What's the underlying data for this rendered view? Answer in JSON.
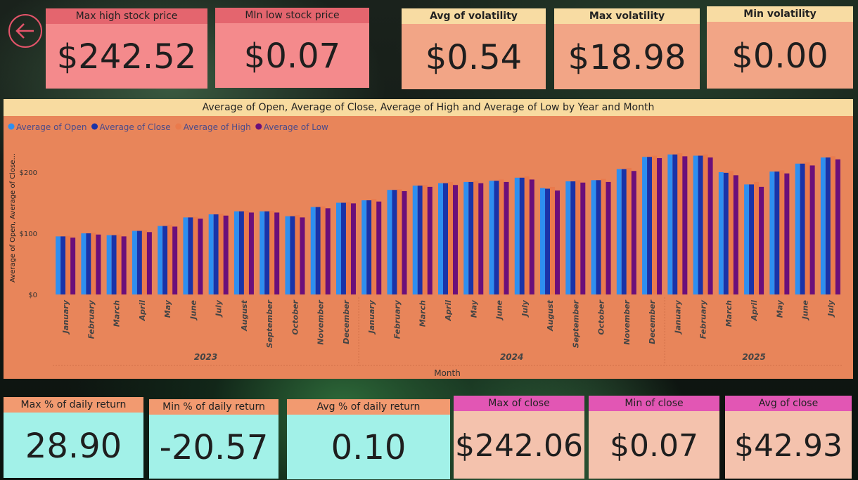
{
  "top_cards": [
    {
      "label": "Max high stock price",
      "value": "$242.52",
      "hdr_color": "#e4656e",
      "body_color": "#f48a8c"
    },
    {
      "label": "MIn low stock price",
      "value": "$0.07",
      "hdr_color": "#e4656e",
      "body_color": "#f48a8c"
    },
    {
      "label": "Avg of volatility",
      "value": "$0.54",
      "hdr_color": "#f8dca3",
      "body_color": "#f2a586"
    },
    {
      "label": "Max volatility",
      "value": "$18.98",
      "hdr_color": "#f8dca3",
      "body_color": "#f2a586"
    },
    {
      "label": "Min volatility",
      "value": "$0.00",
      "hdr_color": "#f8dca3",
      "body_color": "#f2a586"
    }
  ],
  "bottom_cards": [
    {
      "label": "Max % of daily return",
      "value": "28.90",
      "hdr_color": "#f29a70",
      "body_color": "#a2f1e8"
    },
    {
      "label": "Min % of daily return",
      "value": "-20.57",
      "hdr_color": "#f29a70",
      "body_color": "#a2f1e8"
    },
    {
      "label": "Avg % of daily return",
      "value": "0.10",
      "hdr_color": "#f29a70",
      "body_color": "#a2f1e8"
    },
    {
      "label": "Max of close",
      "value": "$242.06",
      "hdr_color": "#e256b4",
      "body_color": "#f4c2ad"
    },
    {
      "label": "Min of close",
      "value": "$0.07",
      "hdr_color": "#e256b4",
      "body_color": "#f4c2ad"
    },
    {
      "label": "Avg of close",
      "value": "$42.93",
      "hdr_color": "#e256b4",
      "body_color": "#f4c2ad"
    }
  ],
  "back_button": {
    "icon": "arrow-left-icon",
    "color": "#e4546a"
  },
  "chart_data": {
    "type": "bar",
    "title": "Average of Open, Average of Close, Average of High and Average of Low by Year and Month",
    "xlabel": "Month",
    "ylabel": "Average of Open, Average of Close...",
    "ylim": [
      0,
      250
    ],
    "yticks": [
      "$0",
      "$100",
      "$200"
    ],
    "ytick_values": [
      0,
      100,
      200
    ],
    "legend_position": "top-left",
    "grid": false,
    "categories": [
      "January",
      "February",
      "March",
      "April",
      "May",
      "June",
      "July",
      "August",
      "September",
      "October",
      "November",
      "December",
      "January",
      "February",
      "March",
      "April",
      "May",
      "June",
      "July",
      "August",
      "September",
      "October",
      "November",
      "December",
      "January",
      "February",
      "March",
      "April",
      "May",
      "June",
      "July"
    ],
    "groups": [
      {
        "label": "2023",
        "count": 12
      },
      {
        "label": "2024",
        "count": 12
      },
      {
        "label": "2025",
        "count": 7
      }
    ],
    "series": [
      {
        "name": "Average of Open",
        "color": "#2e8ff0",
        "values": [
          95,
          100,
          97,
          104,
          112,
          126,
          131,
          136,
          136,
          128,
          143,
          150,
          154,
          171,
          178,
          182,
          184,
          186,
          191,
          174,
          185,
          187,
          205,
          225,
          229,
          227,
          200,
          180,
          201,
          214,
          224
        ]
      },
      {
        "name": "Average of Close",
        "color": "#1a33a8",
        "values": [
          95,
          100,
          97,
          104,
          112,
          126,
          131,
          136,
          136,
          128,
          143,
          150,
          154,
          171,
          178,
          182,
          184,
          186,
          191,
          173,
          185,
          187,
          205,
          225,
          229,
          227,
          199,
          180,
          201,
          214,
          224
        ]
      },
      {
        "name": "Average of High",
        "color": "#ea7a4c",
        "values": [
          96,
          101,
          98,
          105,
          114,
          127,
          132,
          137,
          137,
          130,
          144,
          151,
          156,
          172,
          179,
          184,
          186,
          188,
          193,
          176,
          187,
          189,
          207,
          227,
          231,
          229,
          202,
          184,
          203,
          216,
          226
        ]
      },
      {
        "name": "Average of Low",
        "color": "#6b0f7a",
        "values": [
          93,
          98,
          95,
          102,
          111,
          124,
          129,
          134,
          134,
          126,
          141,
          149,
          152,
          169,
          176,
          179,
          182,
          184,
          188,
          170,
          183,
          184,
          202,
          223,
          226,
          224,
          195,
          176,
          198,
          211,
          221
        ]
      }
    ]
  }
}
